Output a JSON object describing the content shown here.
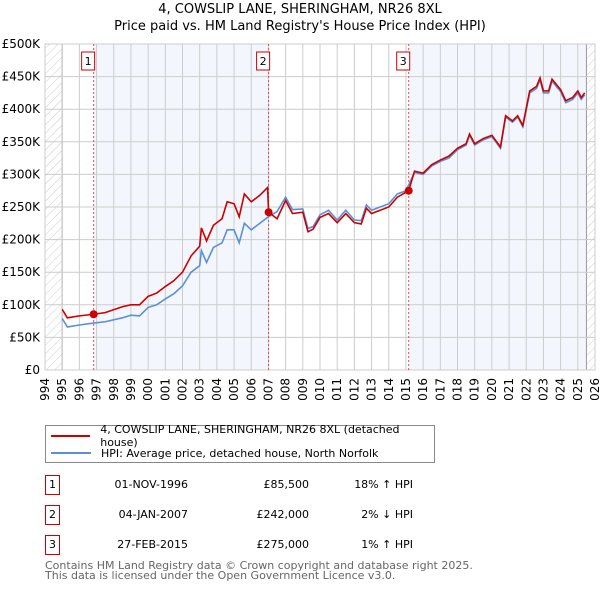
{
  "title": "4, COWSLIP LANE, SHERINGHAM, NR26 8XL",
  "subtitle": "Price paid vs. HM Land Registry's House Price Index (HPI)",
  "chart_data": {
    "type": "line",
    "xlim": [
      1994,
      2026
    ],
    "ylim": [
      0,
      500000
    ],
    "x_ticks": [
      "1994",
      "1995",
      "1996",
      "1997",
      "1998",
      "1999",
      "2000",
      "2001",
      "2002",
      "2003",
      "2004",
      "2005",
      "2006",
      "2007",
      "2008",
      "2009",
      "2010",
      "2011",
      "2012",
      "2013",
      "2014",
      "2015",
      "2016",
      "2017",
      "2018",
      "2019",
      "2020",
      "2021",
      "2022",
      "2023",
      "2024",
      "2025",
      "2026"
    ],
    "y_ticks": [
      {
        "v": 0,
        "label": "£0"
      },
      {
        "v": 50000,
        "label": "£50K"
      },
      {
        "v": 100000,
        "label": "£100K"
      },
      {
        "v": 150000,
        "label": "£150K"
      },
      {
        "v": 200000,
        "label": "£200K"
      },
      {
        "v": 250000,
        "label": "£250K"
      },
      {
        "v": 300000,
        "label": "£300K"
      },
      {
        "v": 350000,
        "label": "£350K"
      },
      {
        "v": 400000,
        "label": "£400K"
      },
      {
        "v": 450000,
        "label": "£450K"
      },
      {
        "v": 500000,
        "label": "£500K"
      }
    ],
    "data_range": [
      1995,
      2025.5
    ],
    "series": [
      {
        "name": "4, COWSLIP LANE, SHERINGHAM, NR26 8XL (detached house)",
        "color": "#cc0000",
        "x": [
          1995,
          1995.3,
          1996,
          1996.83,
          1997.5,
          1998.5,
          1999,
          1999.5,
          2000,
          2000.5,
          2001,
          2001.5,
          2002,
          2002.5,
          2003,
          2003.1,
          2003.4,
          2003.8,
          2004.3,
          2004.6,
          2005,
          2005.3,
          2005.6,
          2006,
          2006.5,
          2006.95,
          2007.01,
          2007.5,
          2008,
          2008.4,
          2009,
          2009.3,
          2009.6,
          2010,
          2010.5,
          2011,
          2011.5,
          2012,
          2012.4,
          2012.7,
          2013,
          2013.5,
          2014,
          2014.5,
          2015.16,
          2015.5,
          2016,
          2016.5,
          2017,
          2017.5,
          2018,
          2018.5,
          2018.7,
          2019,
          2019.5,
          2020,
          2020.5,
          2020.8,
          2021.2,
          2021.5,
          2021.8,
          2022.2,
          2022.6,
          2022.8,
          2023,
          2023.3,
          2023.5,
          2024,
          2024.3,
          2024.7,
          2025,
          2025.2,
          2025.4
        ],
        "y": [
          93000,
          80000,
          83000,
          85500,
          88000,
          97000,
          100000,
          100000,
          113000,
          118000,
          128000,
          137000,
          150000,
          175000,
          190000,
          218000,
          198000,
          222000,
          232000,
          258000,
          255000,
          235000,
          270000,
          258000,
          268000,
          280000,
          242000,
          232000,
          260000,
          240000,
          242000,
          212000,
          216000,
          234000,
          240000,
          226000,
          240000,
          226000,
          224000,
          248000,
          240000,
          245000,
          250000,
          265000,
          275000,
          305000,
          302000,
          315000,
          322000,
          328000,
          340000,
          347000,
          362000,
          347000,
          355000,
          360000,
          342000,
          390000,
          382000,
          390000,
          375000,
          428000,
          435000,
          448000,
          428000,
          428000,
          446000,
          430000,
          413000,
          418000,
          428000,
          418000,
          425000
        ]
      },
      {
        "name": "HPI: Average price, detached house, North Norfolk",
        "color": "#5b8fd6",
        "x": [
          1995,
          1995.3,
          1996,
          1996.83,
          1997.5,
          1998.5,
          1999,
          1999.5,
          2000,
          2000.5,
          2001,
          2001.5,
          2002,
          2002.5,
          2003,
          2003.1,
          2003.4,
          2003.8,
          2004.3,
          2004.6,
          2005,
          2005.3,
          2005.6,
          2006,
          2006.5,
          2007,
          2007.5,
          2008,
          2008.4,
          2009,
          2009.3,
          2009.6,
          2010,
          2010.5,
          2011,
          2011.5,
          2012,
          2012.4,
          2012.7,
          2013,
          2013.5,
          2014,
          2014.5,
          2015,
          2015.5,
          2016,
          2016.5,
          2017,
          2017.5,
          2018,
          2018.5,
          2018.7,
          2019,
          2019.5,
          2020,
          2020.5,
          2020.8,
          2021.2,
          2021.5,
          2021.8,
          2022.2,
          2022.6,
          2022.8,
          2023,
          2023.3,
          2023.5,
          2024,
          2024.3,
          2024.7,
          2025,
          2025.2,
          2025.4
        ],
        "y": [
          79000,
          66000,
          69000,
          72000,
          74000,
          80000,
          84000,
          83000,
          96000,
          100000,
          109000,
          117000,
          129000,
          150000,
          160000,
          183000,
          165000,
          188000,
          195000,
          215000,
          215000,
          195000,
          225000,
          215000,
          225000,
          235000,
          243000,
          265000,
          246000,
          247000,
          217000,
          220000,
          238000,
          245000,
          230000,
          245000,
          230000,
          229000,
          253000,
          245000,
          250000,
          255000,
          270000,
          275000,
          303000,
          300000,
          313000,
          320000,
          325000,
          338000,
          345000,
          360000,
          345000,
          353000,
          358000,
          340000,
          388000,
          380000,
          388000,
          373000,
          425000,
          432000,
          445000,
          425000,
          425000,
          443000,
          427000,
          410000,
          415000,
          425000,
          415000,
          422000
        ]
      }
    ],
    "sales": [
      {
        "num": "1",
        "x": 1996.83,
        "price": 85500,
        "date": "01-NOV-1996",
        "price_label": "£85,500",
        "hpi": "18% ↑ HPI"
      },
      {
        "num": "2",
        "x": 2007.01,
        "price": 242000,
        "date": "04-JAN-2007",
        "price_label": "£242,000",
        "hpi": "2% ↓ HPI"
      },
      {
        "num": "3",
        "x": 2015.16,
        "price": 275000,
        "date": "27-FEB-2015",
        "price_label": "£275,000",
        "hpi": "1% ↑ HPI"
      }
    ]
  },
  "legend": {
    "property": "4, COWSLIP LANE, SHERINGHAM, NR26 8XL (detached house)",
    "hpi": "HPI: Average price, detached house, North Norfolk"
  },
  "footer": {
    "line1": "Contains HM Land Registry data © Crown copyright and database right 2025.",
    "line2": "This data is licensed under the Open Government Licence v3.0."
  }
}
